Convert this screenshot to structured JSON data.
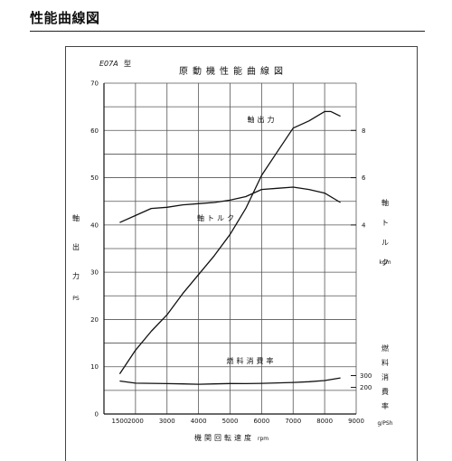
{
  "page": {
    "heading": "性能曲線図"
  },
  "chart_data": {
    "type": "line",
    "model_label": "E07A",
    "model_suffix": "型",
    "title": "原動機性能曲線図",
    "xlabel": "機関回転速度",
    "xunit": "rpm",
    "xlim": [
      1000,
      9000
    ],
    "xticks": [
      1500,
      2000,
      3000,
      4000,
      5000,
      6000,
      7000,
      8000,
      9000
    ],
    "left_axis": {
      "label": "軸出力",
      "unit": "PS",
      "ylim": [
        0,
        70
      ],
      "ticks": [
        0,
        10,
        20,
        30,
        40,
        50,
        60,
        70
      ]
    },
    "torque_axis": {
      "label": "軸トルク",
      "unit": "kgm",
      "ticks": [
        4,
        6,
        8
      ]
    },
    "fuel_axis": {
      "label": "燃料消費率",
      "unit": "g/PSh",
      "ticks": [
        200,
        300
      ]
    },
    "grid": true,
    "series": [
      {
        "name": "軸出力",
        "axis": "power",
        "color": "#111111",
        "x": [
          1500,
          2000,
          2500,
          3000,
          3500,
          4000,
          4500,
          5000,
          5500,
          6000,
          6500,
          7000,
          7500,
          8000,
          8200,
          8500
        ],
        "values": [
          8.5,
          13.5,
          17.5,
          21,
          25.5,
          29.5,
          33.5,
          38,
          43.5,
          50.5,
          55.5,
          60.5,
          62,
          64,
          64,
          63
        ]
      },
      {
        "name": "軸トルク",
        "axis": "torque",
        "color": "#111111",
        "x": [
          1500,
          2000,
          2500,
          3000,
          3500,
          4000,
          4500,
          5000,
          5500,
          6000,
          6500,
          7000,
          7500,
          8000,
          8500
        ],
        "values": [
          4.1,
          4.4,
          4.7,
          4.75,
          4.85,
          4.9,
          4.95,
          5.05,
          5.2,
          5.5,
          5.55,
          5.6,
          5.5,
          5.35,
          4.95
        ]
      },
      {
        "name": "燃料消費率",
        "axis": "fuel",
        "color": "#111111",
        "x": [
          1500,
          2000,
          2500,
          3000,
          3500,
          4000,
          4500,
          5000,
          5500,
          6000,
          6500,
          7000,
          7500,
          8000,
          8500
        ],
        "values": [
          254,
          236,
          234,
          232,
          230,
          227,
          230,
          233,
          232,
          234,
          238,
          242,
          248,
          258,
          280
        ]
      }
    ]
  }
}
